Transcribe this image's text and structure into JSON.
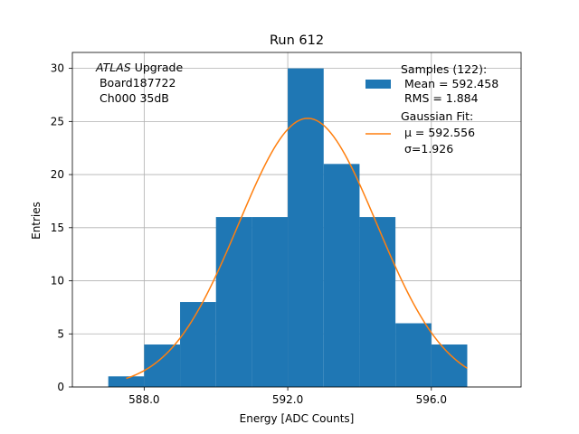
{
  "chart_data": {
    "type": "bar",
    "title": "Run 612",
    "xlabel": "Energy [ADC Counts]",
    "ylabel": "Entries",
    "xlim": [
      586.0,
      598.5
    ],
    "ylim": [
      0,
      31.5
    ],
    "xticks": [
      588.0,
      592.0,
      596.0
    ],
    "xtick_labels": [
      "588.0",
      "592.0",
      "596.0"
    ],
    "yticks": [
      0,
      5,
      10,
      15,
      20,
      25,
      30
    ],
    "ytick_labels": [
      "0",
      "5",
      "10",
      "15",
      "20",
      "25",
      "30"
    ],
    "grid": true,
    "bin_edges": [
      587,
      588,
      589,
      590,
      591,
      592,
      593,
      594,
      595,
      596,
      597
    ],
    "values": [
      1,
      4,
      8,
      16,
      16,
      30,
      21,
      16,
      6,
      4
    ],
    "fit": {
      "type": "gaussian",
      "mu": 592.556,
      "sigma": 1.926,
      "amplitude": 25.3,
      "x_range": [
        587.5,
        597
      ]
    },
    "annotation": {
      "italic": "ATLAS",
      "rest": " Upgrade",
      "line2": " Board187722",
      "line3": " Ch000 35dB"
    },
    "legend": {
      "position": "upper-right",
      "histogram_lines": [
        "Samples (122):",
        " Mean = 592.458",
        " RMS = 1.884"
      ],
      "fit_title": "Gaussian Fit:",
      "fit_mu_label": " μ = 592.556",
      "fit_sigma_label": " σ=1.926"
    },
    "colors": {
      "bar": "#1f77b4",
      "fit": "#ff7f0e",
      "grid": "#b0b0b0"
    }
  }
}
